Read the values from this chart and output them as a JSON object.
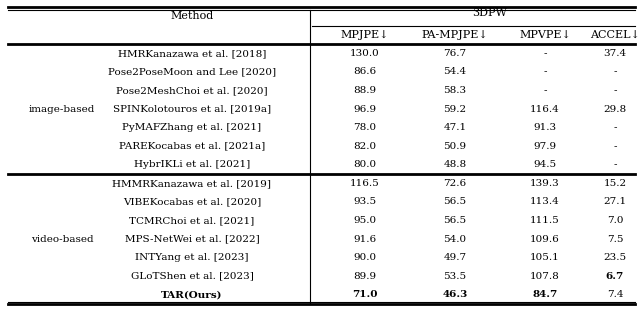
{
  "title": "3DPW",
  "col_headers_row2": [
    "MPJPE↓",
    "PA-MPJPE↓",
    "MPVPE↓",
    "ACCEL↓"
  ],
  "group1_label": "image-based",
  "group2_label": "video-based",
  "group1_rows": [
    [
      "HMRKanazawa et al. [2018]",
      "130.0",
      "76.7",
      "-",
      "37.4"
    ],
    [
      "Pose2PoseMoon and Lee [2020]",
      "86.6",
      "54.4",
      "-",
      "-"
    ],
    [
      "Pose2MeshChoi et al. [2020]",
      "88.9",
      "58.3",
      "-",
      "-"
    ],
    [
      "SPINKolotouros et al. [2019a]",
      "96.9",
      "59.2",
      "116.4",
      "29.8"
    ],
    [
      "PyMAFZhang et al. [2021]",
      "78.0",
      "47.1",
      "91.3",
      "-"
    ],
    [
      "PAREKocabas et al. [2021a]",
      "82.0",
      "50.9",
      "97.9",
      "-"
    ],
    [
      "HybrIKLi et al. [2021]",
      "80.0",
      "48.8",
      "94.5",
      "-"
    ]
  ],
  "group2_rows": [
    [
      "HMMRKanazawa et al. [2019]",
      "116.5",
      "72.6",
      "139.3",
      "15.2"
    ],
    [
      "VIBEKocabas et al. [2020]",
      "93.5",
      "56.5",
      "113.4",
      "27.1"
    ],
    [
      "TCMRChoi et al. [2021]",
      "95.0",
      "56.5",
      "111.5",
      "7.0"
    ],
    [
      "MPS-NetWei et al. [2022]",
      "91.6",
      "54.0",
      "109.6",
      "7.5"
    ],
    [
      "INTYang et al. [2023]",
      "90.0",
      "49.7",
      "105.1",
      "23.5"
    ],
    [
      "GLoTShen et al. [2023]",
      "89.9",
      "53.5",
      "107.8",
      "6.7"
    ],
    [
      "TAR(Ours)",
      "71.0",
      "46.3",
      "84.7",
      "7.4"
    ]
  ],
  "background_color": "#ffffff",
  "fontsize": 8.0
}
